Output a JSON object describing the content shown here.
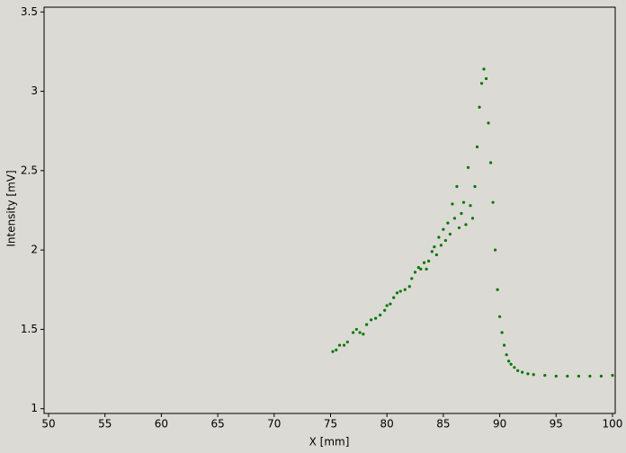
{
  "chart_data": {
    "type": "scatter",
    "xlabel": "X [mm]",
    "ylabel": "Intensity [mV]",
    "color": "#007700",
    "x": [
      75.2,
      75.5,
      75.8,
      76.2,
      76.5,
      77.0,
      77.3,
      77.6,
      77.9,
      78.2,
      78.6,
      79.0,
      79.4,
      79.8,
      80.0,
      80.3,
      80.6,
      80.9,
      81.2,
      81.6,
      82.0,
      82.2,
      82.5,
      82.8,
      83.0,
      83.3,
      83.5,
      83.7,
      84.0,
      84.2,
      84.4,
      84.6,
      84.8,
      85.0,
      85.2,
      85.4,
      85.6,
      85.8,
      86.0,
      86.2,
      86.4,
      86.6,
      86.8,
      87.0,
      87.2,
      87.4,
      87.6,
      87.8,
      88.0,
      88.2,
      88.4,
      88.6,
      88.8,
      89.0,
      89.2,
      89.4,
      89.6,
      89.8,
      90.0,
      90.2,
      90.4,
      90.6,
      90.8,
      91.0,
      91.3,
      91.6,
      92.0,
      92.5,
      93.0,
      94.0,
      95.0,
      96.0,
      97.0,
      98.0,
      99.0,
      100.0
    ],
    "values": [
      1.36,
      1.37,
      1.4,
      1.4,
      1.42,
      1.48,
      1.5,
      1.48,
      1.47,
      1.53,
      1.56,
      1.57,
      1.59,
      1.62,
      1.65,
      1.66,
      1.7,
      1.73,
      1.74,
      1.75,
      1.77,
      1.82,
      1.86,
      1.89,
      1.88,
      1.92,
      1.88,
      1.93,
      1.99,
      2.02,
      1.97,
      2.08,
      2.03,
      2.13,
      2.06,
      2.17,
      2.1,
      2.29,
      2.2,
      2.4,
      2.14,
      2.23,
      2.3,
      2.16,
      2.52,
      2.28,
      2.2,
      2.4,
      2.65,
      2.9,
      3.05,
      3.14,
      3.08,
      2.8,
      2.55,
      2.3,
      2.0,
      1.75,
      1.58,
      1.48,
      1.4,
      1.34,
      1.3,
      1.28,
      1.26,
      1.24,
      1.23,
      1.22,
      1.215,
      1.21,
      1.205,
      1.205,
      1.205,
      1.205,
      1.205,
      1.21
    ],
    "xlim": [
      49.6,
      100.24
    ],
    "ylim": [
      0.97,
      3.53
    ],
    "xticks": [
      50,
      55,
      60,
      65,
      70,
      75,
      80,
      85,
      90,
      95,
      100
    ],
    "yticks": [
      1,
      1.5,
      2,
      2.5,
      3,
      3.5
    ]
  }
}
